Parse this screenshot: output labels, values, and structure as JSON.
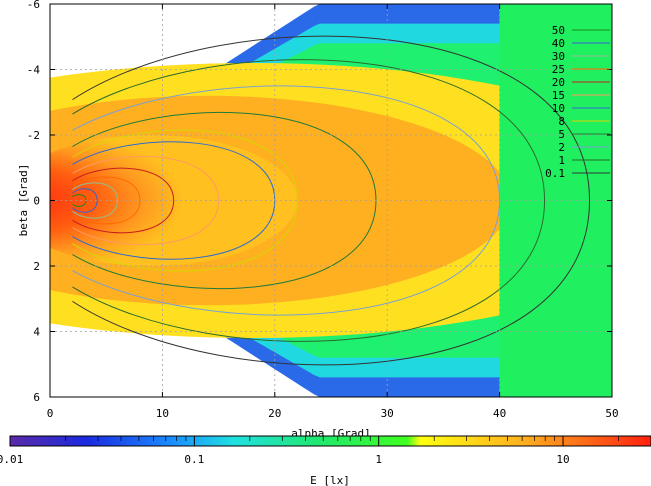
{
  "chart_data": {
    "type": "heatmap",
    "xlabel": "alpha [Grad]",
    "ylabel": "beta [Grad]",
    "xlim": [
      0,
      50
    ],
    "ylim": [
      -6,
      6
    ],
    "y_axis_inverted": true,
    "x_ticks": [
      "0",
      "10",
      "20",
      "30",
      "40",
      "50"
    ],
    "y_ticks": [
      "-6",
      "-4",
      "-2",
      "0",
      "2",
      "4",
      "6"
    ],
    "grid": true,
    "contour_levels": [
      "50",
      "40",
      "30",
      "25",
      "20",
      "15",
      "10",
      "8",
      "5",
      "2",
      "1",
      "0.1"
    ],
    "contour_legend_position": "top-right",
    "colorbar": {
      "label": "E [lx]",
      "scale": "log",
      "range": [
        0.01,
        30
      ],
      "tick_labels": [
        "0.01",
        "0.1",
        "1",
        "10"
      ]
    }
  },
  "colors": {
    "contour_50": "#1a8a1a",
    "contour_40": "#3a5fd0",
    "contour_30": "#8fbf8f",
    "contour_25": "#ff6a00",
    "contour_20": "#c81e1e",
    "contour_15": "#ff9a60",
    "contour_10": "#2e6ad0",
    "contour_8": "#d6d600",
    "contour_5": "#1f7a3a",
    "contour_2": "#7aa0d0",
    "contour_1": "#2a6a2a",
    "contour_0_1": "#333333"
  }
}
